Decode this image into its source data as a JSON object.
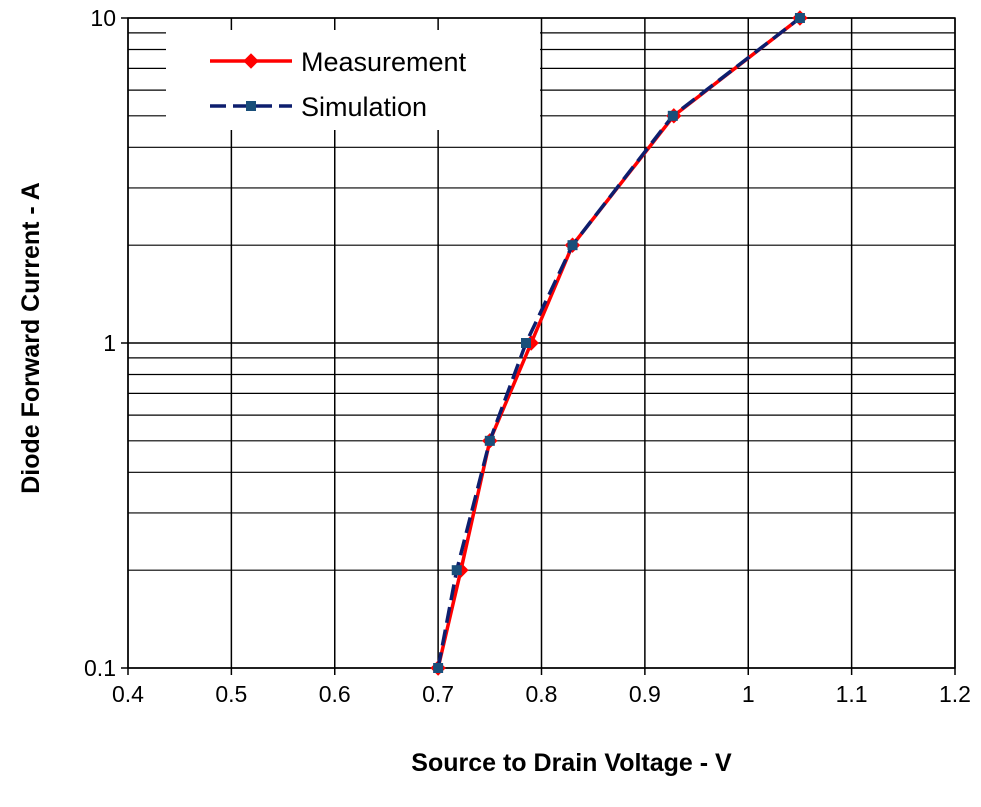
{
  "chart_data": {
    "type": "line",
    "xlabel": "Source to Drain Voltage - V",
    "ylabel": "Diode Forward Current - A",
    "xlim": [
      0.4,
      1.2
    ],
    "ylim": [
      0.1,
      10
    ],
    "yscale": "log",
    "x_ticks": [
      "0.4",
      "0.5",
      "0.6",
      "0.7",
      "0.8",
      "0.9",
      "1",
      "1.1",
      "1.2"
    ],
    "y_ticks": [
      "0.1",
      "1",
      "10"
    ],
    "grid": true,
    "legend_position": "top-left",
    "series": [
      {
        "name": "Measurement",
        "color": "#ff0000",
        "marker": "diamond",
        "line_style": "solid",
        "points": [
          {
            "x": 0.7,
            "y": 0.1
          },
          {
            "x": 0.722,
            "y": 0.2
          },
          {
            "x": 0.75,
            "y": 0.5
          },
          {
            "x": 0.79,
            "y": 1
          },
          {
            "x": 0.83,
            "y": 2
          },
          {
            "x": 0.928,
            "y": 5
          },
          {
            "x": 1.05,
            "y": 10
          }
        ]
      },
      {
        "name": "Simulation",
        "color": "#0d1e6e",
        "marker_color": "#1a4f7a",
        "marker": "square",
        "line_style": "dashed",
        "points": [
          {
            "x": 0.7,
            "y": 0.1
          },
          {
            "x": 0.718,
            "y": 0.2
          },
          {
            "x": 0.75,
            "y": 0.5
          },
          {
            "x": 0.785,
            "y": 1
          },
          {
            "x": 0.83,
            "y": 2
          },
          {
            "x": 0.927,
            "y": 5
          },
          {
            "x": 1.05,
            "y": 10
          }
        ]
      }
    ]
  }
}
